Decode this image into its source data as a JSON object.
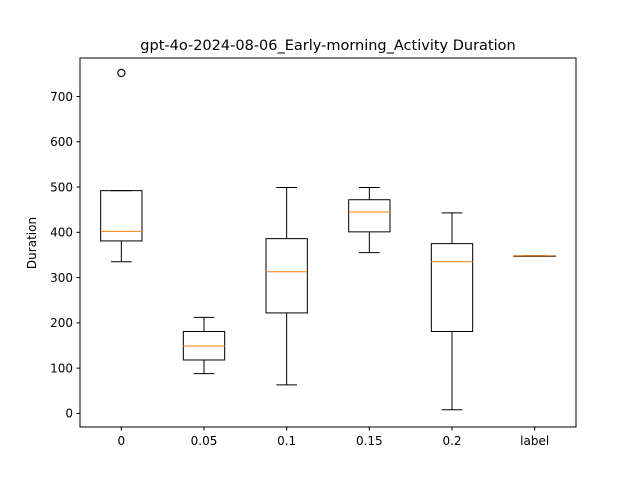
{
  "chart_data": {
    "type": "box",
    "title": "gpt-4o-2024-08-06_Early-morning_Activity Duration",
    "xlabel": "",
    "ylabel": "Duration",
    "categories": [
      "0",
      "0.05",
      "0.1",
      "0.15",
      "0.2",
      "label"
    ],
    "ylim": [
      -30,
      785
    ],
    "yticks": [
      0,
      100,
      200,
      300,
      400,
      500,
      600,
      700
    ],
    "grid": false,
    "boxes": [
      {
        "category": "0",
        "whisker_low": 335,
        "q1": 381,
        "median": 402,
        "q3": 492,
        "whisker_high": 492,
        "outliers": [
          752
        ]
      },
      {
        "category": "0.05",
        "whisker_low": 88,
        "q1": 118,
        "median": 149,
        "q3": 181,
        "whisker_high": 212,
        "outliers": []
      },
      {
        "category": "0.1",
        "whisker_low": 63,
        "q1": 222,
        "median": 313,
        "q3": 386,
        "whisker_high": 499,
        "outliers": []
      },
      {
        "category": "0.15",
        "whisker_low": 355,
        "q1": 401,
        "median": 445,
        "q3": 472,
        "whisker_high": 499,
        "outliers": []
      },
      {
        "category": "0.2",
        "whisker_low": 8,
        "q1": 181,
        "median": 335,
        "q3": 375,
        "whisker_high": 443,
        "outliers": []
      },
      {
        "category": "label",
        "whisker_low": 348,
        "q1": 348,
        "median": 348,
        "q3": 348,
        "whisker_high": 348,
        "outliers": []
      }
    ],
    "colors": {
      "box": "#000000",
      "median": "#ff7f0e",
      "flier": "#000000"
    }
  }
}
